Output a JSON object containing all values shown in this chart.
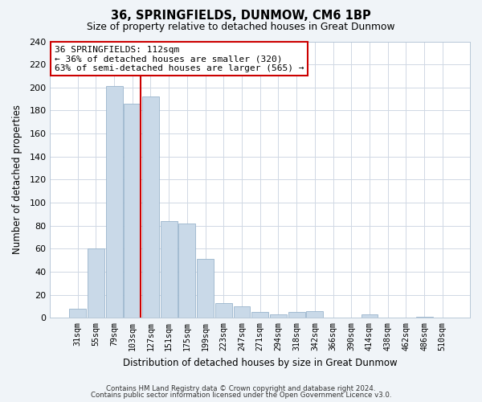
{
  "title": "36, SPRINGFIELDS, DUNMOW, CM6 1BP",
  "subtitle": "Size of property relative to detached houses in Great Dunmow",
  "xlabel": "Distribution of detached houses by size in Great Dunmow",
  "ylabel": "Number of detached properties",
  "bar_labels": [
    "31sqm",
    "55sqm",
    "79sqm",
    "103sqm",
    "127sqm",
    "151sqm",
    "175sqm",
    "199sqm",
    "223sqm",
    "247sqm",
    "271sqm",
    "294sqm",
    "318sqm",
    "342sqm",
    "366sqm",
    "390sqm",
    "414sqm",
    "438sqm",
    "462sqm",
    "486sqm",
    "510sqm"
  ],
  "bar_values": [
    8,
    60,
    201,
    186,
    192,
    84,
    82,
    51,
    13,
    10,
    5,
    3,
    5,
    6,
    0,
    0,
    3,
    0,
    0,
    1,
    0
  ],
  "bar_color": "#c9d9e8",
  "bar_edge_color": "#9ab5cc",
  "vline_color": "#cc0000",
  "annotation_title": "36 SPRINGFIELDS: 112sqm",
  "annotation_line1": "← 36% of detached houses are smaller (320)",
  "annotation_line2": "63% of semi-detached houses are larger (565) →",
  "ylim": [
    0,
    240
  ],
  "yticks": [
    0,
    20,
    40,
    60,
    80,
    100,
    120,
    140,
    160,
    180,
    200,
    220,
    240
  ],
  "footer1": "Contains HM Land Registry data © Crown copyright and database right 2024.",
  "footer2": "Contains public sector information licensed under the Open Government Licence v3.0.",
  "bg_color": "#f0f4f8",
  "plot_bg_color": "#ffffff",
  "grid_color": "#d0d8e4"
}
